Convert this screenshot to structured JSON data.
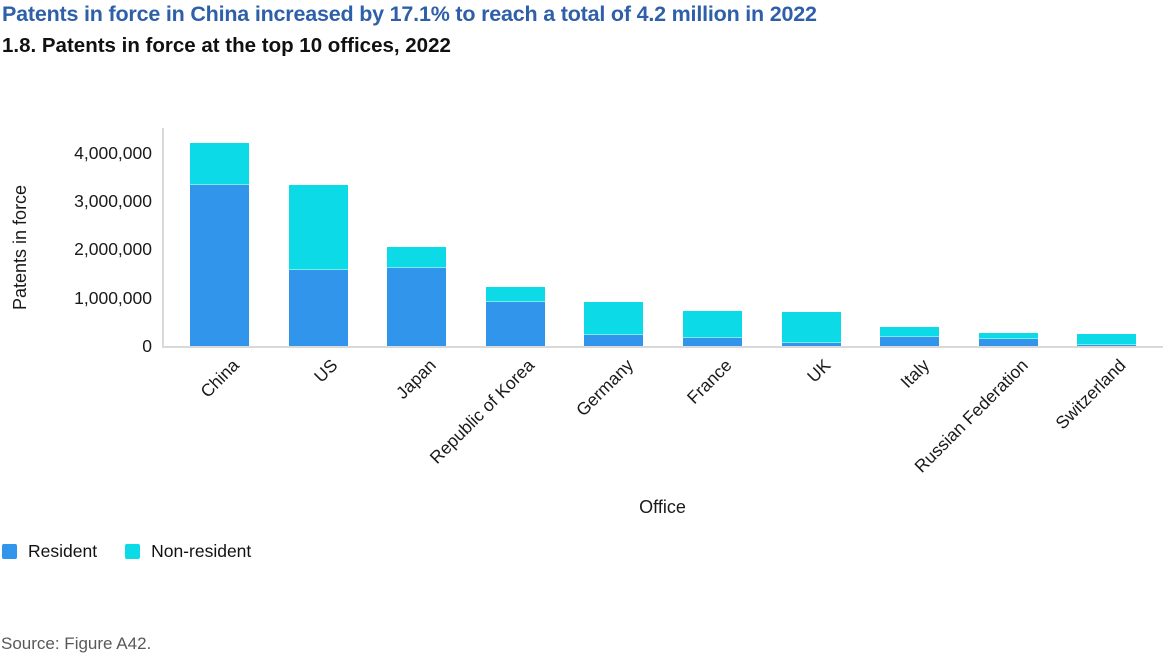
{
  "page": {
    "headline": "Patents in force in China increased by 17.1% to reach a total of 4.2 million in 2022",
    "figure_title": "1.8. Patents in force at the top 10 offices, 2022",
    "source": "Source: Figure A42."
  },
  "colors": {
    "headline_text": "#2E5FA8",
    "resident": "#3095EB",
    "non_resident": "#0CDAE6",
    "axis_line": "#D9D9D9",
    "body_text": "#1A1A1A",
    "source_text": "#595959"
  },
  "chart_data": {
    "type": "bar",
    "stacked": true,
    "title": "1.8. Patents in force at the top 10 offices, 2022",
    "xlabel": "Office",
    "ylabel": "Patents in force",
    "ylim": [
      0,
      4510000
    ],
    "yticks": [
      0,
      1000000,
      2000000,
      3000000,
      4000000
    ],
    "ytick_labels": [
      "0",
      "1,000,000",
      "2,000,000",
      "3,000,000",
      "4,000,000"
    ],
    "grid": false,
    "legend_position": "bottom-left",
    "categories": [
      "China",
      "US",
      "Japan",
      "Republic of Korea",
      "Germany",
      "France",
      "UK",
      "Italy",
      "Russian Federation",
      "Switzerland"
    ],
    "series": [
      {
        "name": "Resident",
        "color": "#3095EB",
        "values": [
          3340000,
          1570000,
          1620000,
          920000,
          230000,
          160000,
          70000,
          180000,
          140000,
          30000
        ]
      },
      {
        "name": "Non-resident",
        "color": "#0CDAE6",
        "values": [
          860000,
          1760000,
          420000,
          300000,
          680000,
          570000,
          630000,
          210000,
          130000,
          220000
        ]
      }
    ]
  }
}
